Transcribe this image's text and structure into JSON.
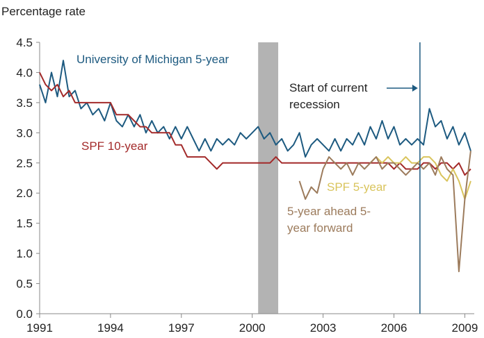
{
  "chart_data": {
    "type": "line",
    "ylabel": "Percentage rate",
    "xlim": [
      1991,
      2009.4
    ],
    "xticks": [
      1991,
      1994,
      1997,
      2000,
      2003,
      2006,
      2009
    ],
    "ylim": [
      0,
      4.5
    ],
    "yticks": [
      {
        "value": 0,
        "label": "0.0"
      },
      {
        "value": 0.5,
        "label": "0.5"
      },
      {
        "value": 1,
        "label": "1.0"
      },
      {
        "value": 1.5,
        "label": "1.5"
      },
      {
        "value": 2,
        "label": "2.0"
      },
      {
        "value": 2.5,
        "label": "2.5"
      },
      {
        "value": 3,
        "label": "3.0"
      },
      {
        "value": 3.5,
        "label": "3.5"
      },
      {
        "value": 4,
        "label": "4.0"
      },
      {
        "value": 4.5,
        "label": "4.5"
      }
    ],
    "grid": false,
    "recession_band": [
      2000.25,
      2001.1
    ],
    "recession_band_color": "#b3b3b3",
    "annotation": {
      "text": "Start of current recession",
      "x": 2007.1,
      "color": "#1d5a80"
    },
    "x": [
      1991,
      1991.25,
      1991.5,
      1991.75,
      1992,
      1992.25,
      1992.5,
      1992.75,
      1993,
      1993.25,
      1993.5,
      1993.75,
      1994,
      1994.25,
      1994.5,
      1994.75,
      1995,
      1995.25,
      1995.5,
      1995.75,
      1996,
      1996.25,
      1996.5,
      1996.75,
      1997,
      1997.25,
      1997.5,
      1997.75,
      1998,
      1998.25,
      1998.5,
      1998.75,
      1999,
      1999.25,
      1999.5,
      1999.75,
      2000,
      2000.25,
      2000.5,
      2000.75,
      2001,
      2001.25,
      2001.5,
      2001.75,
      2002,
      2002.25,
      2002.5,
      2002.75,
      2003,
      2003.25,
      2003.5,
      2003.75,
      2004,
      2004.25,
      2004.5,
      2004.75,
      2005,
      2005.25,
      2005.5,
      2005.75,
      2006,
      2006.25,
      2006.5,
      2006.75,
      2007,
      2007.25,
      2007.5,
      2007.75,
      2008,
      2008.25,
      2008.5,
      2008.75,
      2009,
      2009.25
    ],
    "series": [
      {
        "name": "University of Michigan 5-year",
        "color": "#1d5a80",
        "values": [
          3.8,
          3.5,
          4.0,
          3.6,
          4.2,
          3.6,
          3.7,
          3.4,
          3.5,
          3.3,
          3.4,
          3.2,
          3.5,
          3.2,
          3.1,
          3.3,
          3.1,
          3.3,
          3.0,
          3.2,
          3.0,
          3.1,
          2.9,
          3.1,
          2.9,
          3.1,
          2.9,
          2.7,
          2.9,
          2.7,
          2.9,
          2.8,
          2.9,
          2.8,
          3.0,
          2.9,
          3.0,
          3.1,
          2.9,
          3.0,
          2.8,
          2.9,
          2.7,
          2.8,
          3.0,
          2.6,
          2.8,
          2.9,
          2.8,
          2.7,
          2.9,
          2.7,
          2.9,
          2.8,
          3.0,
          2.8,
          3.1,
          2.9,
          3.2,
          2.9,
          3.1,
          2.8,
          2.9,
          2.8,
          2.9,
          2.8,
          3.4,
          3.1,
          3.2,
          2.9,
          3.1,
          2.8,
          3.0,
          2.7
        ]
      },
      {
        "name": "SPF 10-year",
        "color": "#a32a2a",
        "values": [
          4.0,
          3.8,
          3.7,
          3.8,
          3.6,
          3.7,
          3.5,
          3.5,
          3.5,
          3.5,
          3.5,
          3.5,
          3.5,
          3.3,
          3.3,
          3.3,
          3.2,
          3.1,
          3.1,
          3.0,
          3.0,
          3.0,
          3.0,
          2.8,
          2.8,
          2.6,
          2.6,
          2.6,
          2.6,
          2.5,
          2.4,
          2.5,
          2.5,
          2.5,
          2.5,
          2.5,
          2.5,
          2.5,
          2.5,
          2.5,
          2.6,
          2.5,
          2.5,
          2.5,
          2.5,
          2.5,
          2.5,
          2.5,
          2.5,
          2.5,
          2.5,
          2.5,
          2.5,
          2.5,
          2.5,
          2.5,
          2.5,
          2.5,
          2.5,
          2.5,
          2.4,
          2.5,
          2.4,
          2.4,
          2.4,
          2.5,
          2.5,
          2.4,
          2.5,
          2.5,
          2.4,
          2.5,
          2.3,
          2.4
        ]
      },
      {
        "name": "SPF 5-year",
        "color": "#d9c45c",
        "values": [
          null,
          null,
          null,
          null,
          null,
          null,
          null,
          null,
          null,
          null,
          null,
          null,
          null,
          null,
          null,
          null,
          null,
          null,
          null,
          null,
          null,
          null,
          null,
          null,
          null,
          null,
          null,
          null,
          null,
          null,
          null,
          null,
          null,
          null,
          null,
          null,
          null,
          null,
          null,
          null,
          null,
          null,
          null,
          null,
          null,
          null,
          null,
          null,
          null,
          null,
          null,
          null,
          null,
          null,
          null,
          null,
          2.5,
          2.6,
          2.5,
          2.6,
          2.5,
          2.5,
          2.6,
          2.5,
          2.5,
          2.6,
          2.6,
          2.5,
          2.3,
          2.2,
          2.4,
          2.2,
          1.9,
          2.2
        ]
      },
      {
        "name": "5-year ahead 5-year forward",
        "color": "#9c7b5c",
        "values": [
          null,
          null,
          null,
          null,
          null,
          null,
          null,
          null,
          null,
          null,
          null,
          null,
          null,
          null,
          null,
          null,
          null,
          null,
          null,
          null,
          null,
          null,
          null,
          null,
          null,
          null,
          null,
          null,
          null,
          null,
          null,
          null,
          null,
          null,
          null,
          null,
          null,
          null,
          null,
          null,
          null,
          null,
          null,
          null,
          2.2,
          1.9,
          2.1,
          2.0,
          2.4,
          2.6,
          2.5,
          2.4,
          2.5,
          2.3,
          2.5,
          2.4,
          2.5,
          2.6,
          2.4,
          2.5,
          2.5,
          2.4,
          2.3,
          2.4,
          2.5,
          2.4,
          2.5,
          2.3,
          2.6,
          2.4,
          2.3,
          0.7,
          1.9,
          2.7
        ]
      }
    ]
  }
}
